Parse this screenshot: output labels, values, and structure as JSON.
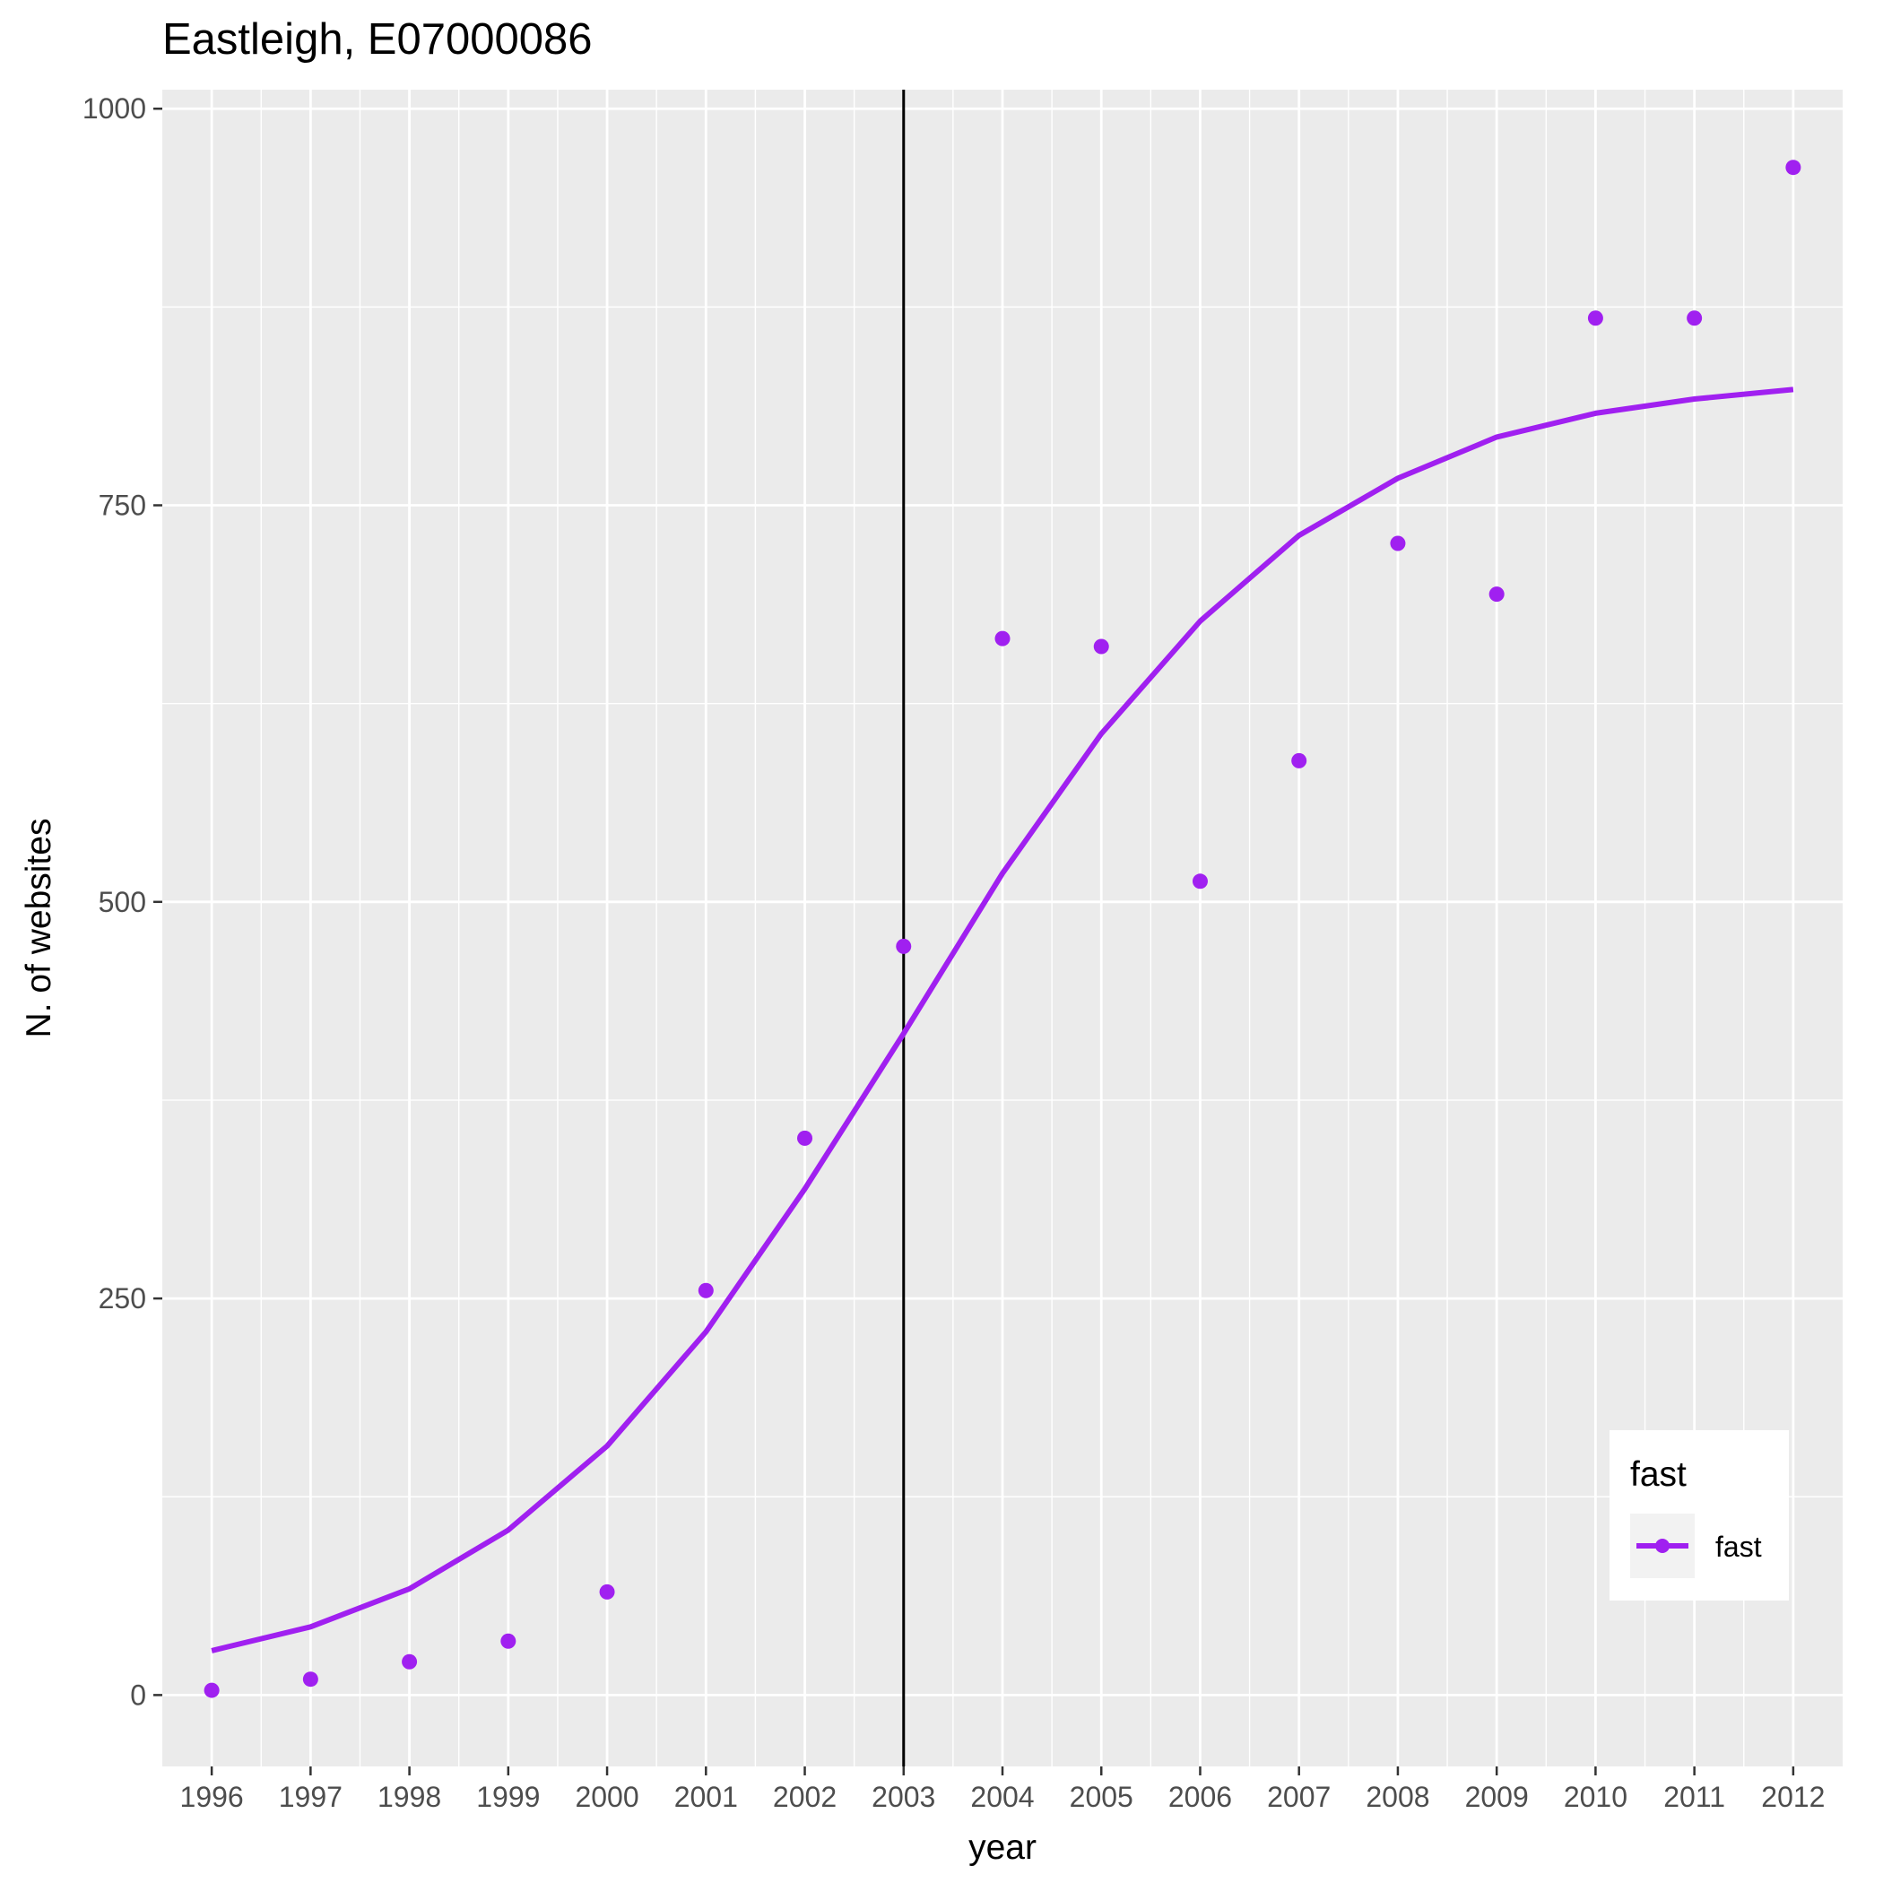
{
  "chart_data": {
    "type": "scatter",
    "title": "Eastleigh, E07000086",
    "xlabel": "year",
    "ylabel": "N. of websites",
    "x_ticks": [
      "1996",
      "1997",
      "1998",
      "1999",
      "2000",
      "2001",
      "2002",
      "2003",
      "2004",
      "2005",
      "2006",
      "2007",
      "2008",
      "2009",
      "2010",
      "2011",
      "2012"
    ],
    "y_ticks": [
      "0",
      "250",
      "500",
      "750",
      "1000"
    ],
    "xlim": [
      1995.5,
      2012.5
    ],
    "ylim": [
      -45,
      1012
    ],
    "grid": true,
    "vline": {
      "x": 2003,
      "color": "#000000"
    },
    "legend": {
      "title": "fast",
      "position": "bottom-right",
      "entries": [
        {
          "label": "fast",
          "color": "#A020F0"
        }
      ]
    },
    "series": [
      {
        "name": "fast",
        "color": "#A020F0",
        "points": {
          "x": [
            1996,
            1997,
            1998,
            1999,
            2000,
            2001,
            2002,
            2003,
            2004,
            2005,
            2006,
            2007,
            2008,
            2009,
            2010,
            2011,
            2012
          ],
          "y": [
            3,
            10,
            21,
            34,
            65,
            255,
            351,
            472,
            666,
            661,
            513,
            589,
            726,
            694,
            868,
            868,
            963
          ]
        },
        "fit": {
          "x": [
            1996,
            1997,
            1998,
            1999,
            2000,
            2001,
            2002,
            2003,
            2004,
            2005,
            2006,
            2007,
            2008,
            2009,
            2010,
            2011,
            2012
          ],
          "y": [
            28,
            43,
            67,
            104,
            157,
            229,
            319,
            417,
            518,
            606,
            677,
            731,
            767,
            793,
            808,
            817,
            823
          ]
        }
      }
    ]
  }
}
